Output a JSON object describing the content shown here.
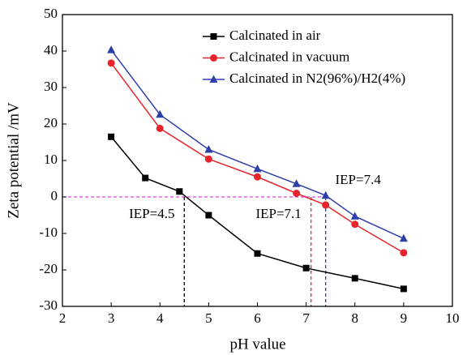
{
  "chart_data": {
    "type": "line",
    "xlabel": "pH value",
    "ylabel": "Zeta potential /mV",
    "xlim": [
      2,
      10
    ],
    "xticks": [
      2,
      3,
      4,
      5,
      6,
      7,
      8,
      9,
      10
    ],
    "ylim": [
      -30,
      50
    ],
    "yticks": [
      -30,
      -20,
      -10,
      0,
      10,
      20,
      30,
      40,
      50
    ],
    "series": [
      {
        "name": "Calcinated in air",
        "color": "#000000",
        "marker": "square",
        "x": [
          3,
          3.7,
          4.4,
          5,
          6,
          7,
          8,
          9
        ],
        "values": [
          16.5,
          5.2,
          1.5,
          -5,
          -15.5,
          -19.5,
          -22.3,
          -25.2
        ]
      },
      {
        "name": "Calcinated in vacuum",
        "color": "#e8242b",
        "marker": "circle",
        "x": [
          3,
          4,
          5,
          6,
          6.8,
          7.4,
          8,
          9
        ],
        "values": [
          36.7,
          18.8,
          10.4,
          5.5,
          1,
          -2.2,
          -7.5,
          -15.3
        ]
      },
      {
        "name": "Calcinated in N2(96%)/H2(4%)",
        "color": "#2e3fa8",
        "marker": "triangle",
        "x": [
          3,
          4,
          5,
          6,
          6.8,
          7.4,
          8,
          9
        ],
        "values": [
          40.3,
          22.6,
          13,
          7.7,
          3.6,
          0.4,
          -5.3,
          -11.4
        ]
      }
    ],
    "hline": {
      "value": 0,
      "color": "#e040e0"
    },
    "annotations": [
      {
        "text": "IEP=4.5",
        "x": 4.5,
        "color": "#000000"
      },
      {
        "text": "IEP=7.1",
        "x": 7.1,
        "color": "#e8242b"
      },
      {
        "text": "IEP=7.4",
        "x": 7.4,
        "color": "#2e3fa8"
      }
    ]
  }
}
